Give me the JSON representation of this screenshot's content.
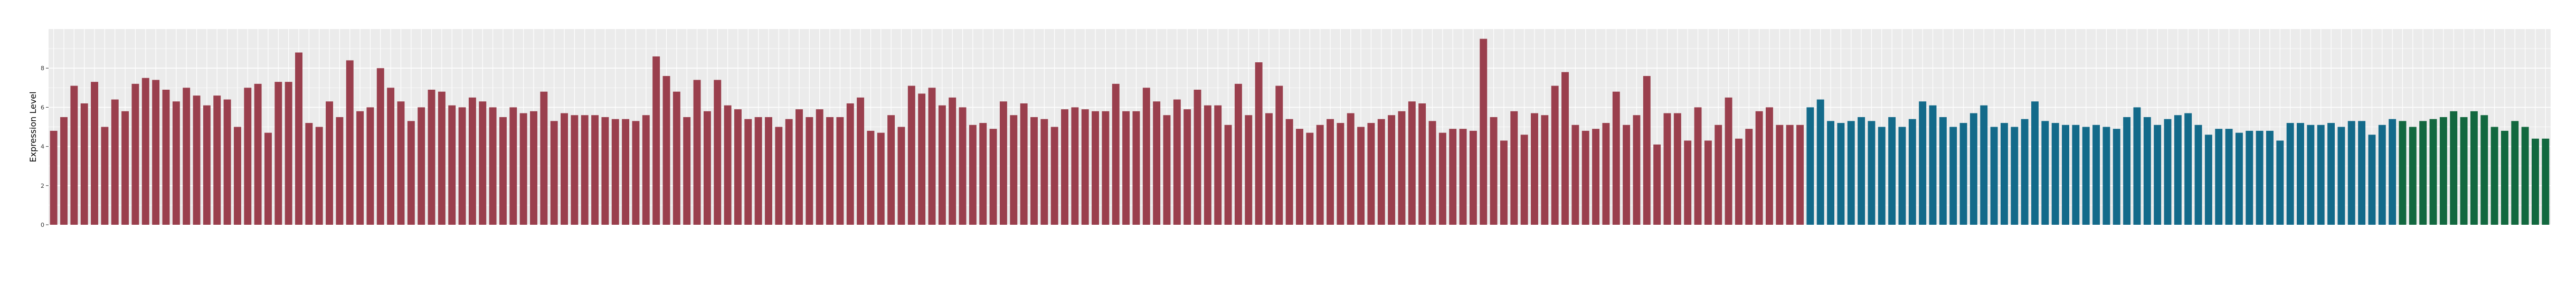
{
  "chart_data": {
    "type": "bar",
    "title": "",
    "xlabel": "",
    "ylabel": "Expression Level",
    "ylim": [
      0,
      10
    ],
    "yticks": [
      0,
      2,
      4,
      6,
      8
    ],
    "grid": true,
    "legend": "none",
    "colors": {
      "group_a": "#9a3f4d",
      "group_b": "#136a8a",
      "group_c": "#12683f",
      "panel": "#ebebeb",
      "gridline": "#ffffff"
    },
    "series": [
      {
        "name": "",
        "color_key": "group_a",
        "values": [
          4.8,
          5.5,
          7.1,
          6.2,
          7.3,
          5.0,
          6.4,
          5.8,
          7.2,
          7.5,
          7.4,
          6.9,
          6.3,
          7.0,
          6.6,
          6.1,
          6.6,
          6.4,
          5.0,
          7.0,
          7.2,
          4.7,
          7.3,
          7.3,
          8.8,
          5.2,
          5.0,
          6.3,
          5.5,
          8.4,
          5.8,
          6.0,
          8.0,
          7.0,
          6.3,
          5.3,
          6.0,
          6.9,
          6.8,
          6.1,
          6.0,
          6.5,
          6.3,
          6.0,
          5.5,
          6.0,
          5.7,
          5.8,
          6.8,
          5.3,
          5.7,
          5.6,
          5.6,
          5.6,
          5.5,
          5.4,
          5.4,
          5.3,
          5.6,
          8.6,
          7.6,
          6.8,
          5.5,
          7.4,
          5.8,
          7.4,
          6.1,
          5.9,
          5.4,
          5.5,
          5.5,
          5.0,
          5.4,
          5.9,
          5.5,
          5.9,
          5.5,
          5.5,
          6.2,
          6.5,
          4.8,
          4.7,
          5.6,
          5.0,
          7.1,
          6.7,
          7.0,
          6.1,
          6.5,
          6.0,
          5.1,
          5.2,
          4.9,
          6.3,
          5.6,
          6.2,
          5.5,
          5.4,
          5.0,
          5.9,
          6.0,
          5.9,
          5.8,
          5.8,
          7.2,
          5.8,
          5.8,
          7.0,
          6.3,
          5.6,
          6.4,
          5.9,
          6.9,
          6.1,
          6.1,
          5.1,
          7.2,
          5.6,
          8.3,
          5.7,
          7.1,
          5.4,
          4.9,
          4.7,
          5.1,
          5.4,
          5.2,
          5.7,
          5.0,
          5.2,
          5.4,
          5.6,
          5.8,
          6.3,
          6.2,
          5.3,
          4.7,
          4.9,
          4.9,
          4.8,
          9.5,
          5.5,
          4.3,
          5.8,
          4.6,
          5.7,
          5.6,
          7.1,
          7.8,
          5.1,
          4.8,
          4.9,
          5.2,
          6.8,
          5.1,
          5.6,
          7.6,
          4.1,
          5.7,
          5.7,
          4.3,
          6.0,
          4.3,
          5.1,
          6.5,
          4.4,
          4.9,
          5.8,
          6.0,
          5.1,
          5.1,
          5.1
        ]
      },
      {
        "name": "",
        "color_key": "group_b",
        "values": [
          6.0,
          6.4,
          5.3,
          5.2,
          5.3,
          5.5,
          5.3,
          5.0,
          5.5,
          5.0,
          5.4,
          6.3,
          6.1,
          5.5,
          5.0,
          5.2,
          5.7,
          6.1,
          5.0,
          5.2,
          5.0,
          5.4,
          6.3,
          5.3,
          5.2,
          5.1,
          5.1,
          5.0,
          5.1,
          5.0,
          4.9,
          5.5,
          6.0,
          5.5,
          5.1,
          5.4,
          5.6,
          5.7,
          5.1,
          4.6,
          4.9,
          4.9,
          4.7,
          4.8,
          4.8,
          4.8,
          4.3,
          5.2,
          5.2,
          5.1,
          5.1,
          5.2,
          5.0,
          5.3,
          5.3,
          4.6,
          5.1,
          5.4
        ]
      },
      {
        "name": "",
        "color_key": "group_c",
        "values": [
          5.3,
          5.0,
          5.3,
          5.4,
          5.5,
          5.8,
          5.5,
          5.8,
          5.6,
          5.0,
          4.8,
          5.3,
          5.0,
          4.4,
          4.4
        ]
      }
    ]
  }
}
